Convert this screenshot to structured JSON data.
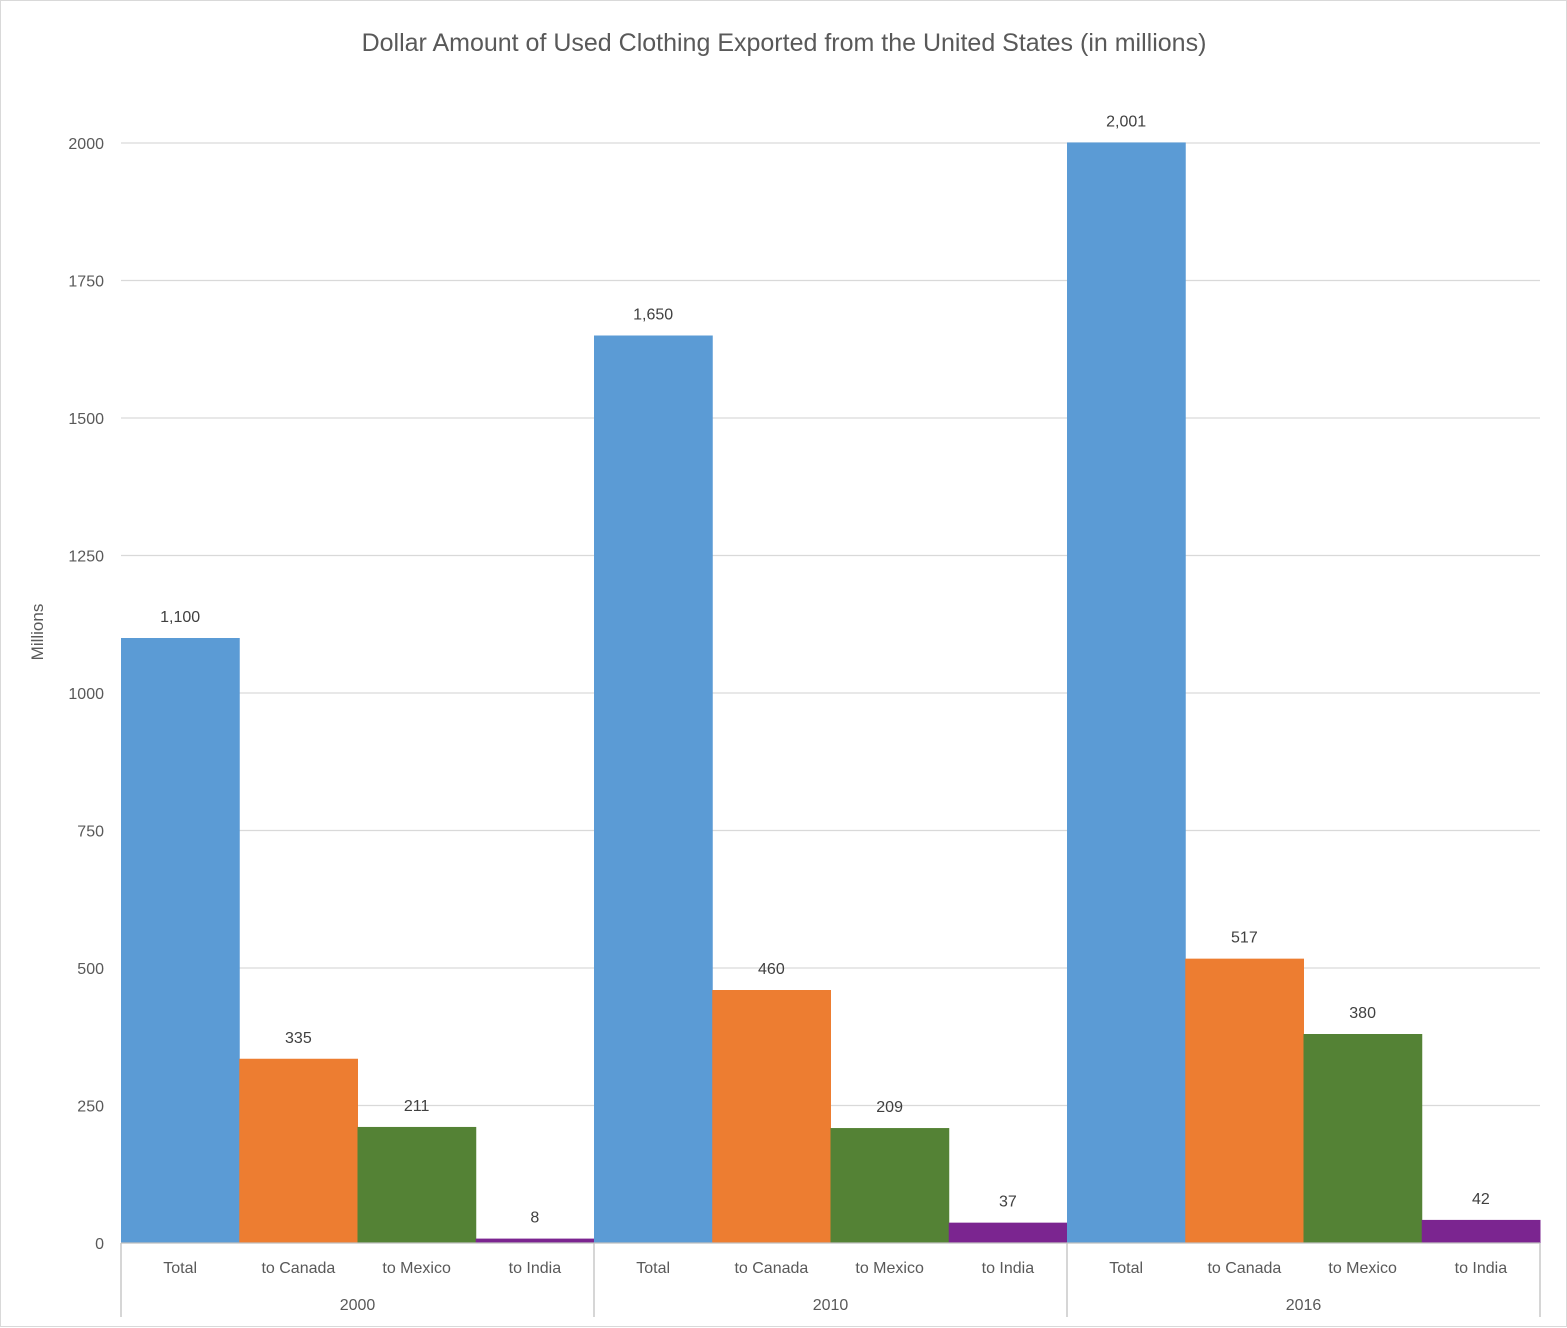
{
  "chart_data": {
    "type": "bar",
    "title": "Dollar Amount of Used Clothing Exported from the United States (in millions)",
    "ylabel": "Millions",
    "xlabel": "",
    "ylim": [
      0,
      2000
    ],
    "yticks": [
      0,
      250,
      500,
      750,
      1000,
      1250,
      1500,
      1750,
      2000
    ],
    "grid": true,
    "legend": "none",
    "groups": [
      {
        "name": "2000",
        "bars": [
          {
            "category": "Total",
            "value": 1100,
            "label": "1,100"
          },
          {
            "category": "to Canada",
            "value": 335,
            "label": "335"
          },
          {
            "category": "to Mexico",
            "value": 211,
            "label": "211"
          },
          {
            "category": "to India",
            "value": 8,
            "label": "8"
          }
        ]
      },
      {
        "name": "2010",
        "bars": [
          {
            "category": "Total",
            "value": 1650,
            "label": "1,650"
          },
          {
            "category": "to Canada",
            "value": 460,
            "label": "460"
          },
          {
            "category": "to Mexico",
            "value": 209,
            "label": "209"
          },
          {
            "category": "to India",
            "value": 37,
            "label": "37"
          }
        ]
      },
      {
        "name": "2016",
        "bars": [
          {
            "category": "Total",
            "value": 2001,
            "label": "2,001"
          },
          {
            "category": "to Canada",
            "value": 517,
            "label": "517"
          },
          {
            "category": "to Mexico",
            "value": 380,
            "label": "380"
          },
          {
            "category": "to India",
            "value": 42,
            "label": "42"
          }
        ]
      }
    ],
    "colors": {
      "Total": "#5b9bd5",
      "to Canada": "#ed7d31",
      "to Mexico": "#548235",
      "to India": "#7b2590"
    }
  }
}
